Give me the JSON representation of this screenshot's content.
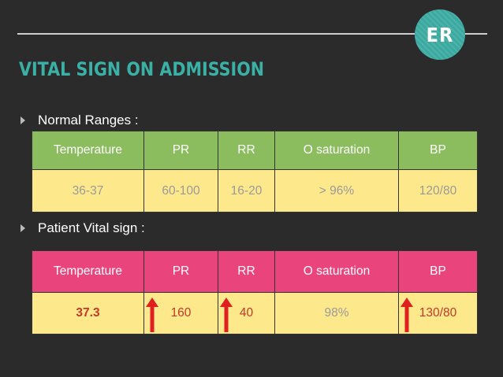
{
  "badge": {
    "text": "ER"
  },
  "title": "VITAL SIGN ON ADMISSION",
  "normal_ranges": {
    "label": "Normal Ranges :",
    "headers": [
      "Temperature",
      "PR",
      "RR",
      "O saturation",
      "BP"
    ],
    "values": [
      "36-37",
      "60-100",
      "16-20",
      "> 96%",
      "120/80"
    ]
  },
  "patient": {
    "label": "Patient Vital sign :",
    "headers": [
      "Temperature",
      "PR",
      "RR",
      "O saturation",
      "BP"
    ],
    "values": [
      "37.3",
      "160",
      "40",
      "98%",
      "130/80"
    ],
    "elevated": [
      "PR",
      "RR",
      "BP"
    ]
  },
  "colors": {
    "background": "#2b2b2b",
    "accent": "#3ab0a6",
    "normal_header": "#8bbd5e",
    "patient_header": "#e9447b",
    "cell_fill": "#fde98c",
    "alert": "#c0392b"
  }
}
